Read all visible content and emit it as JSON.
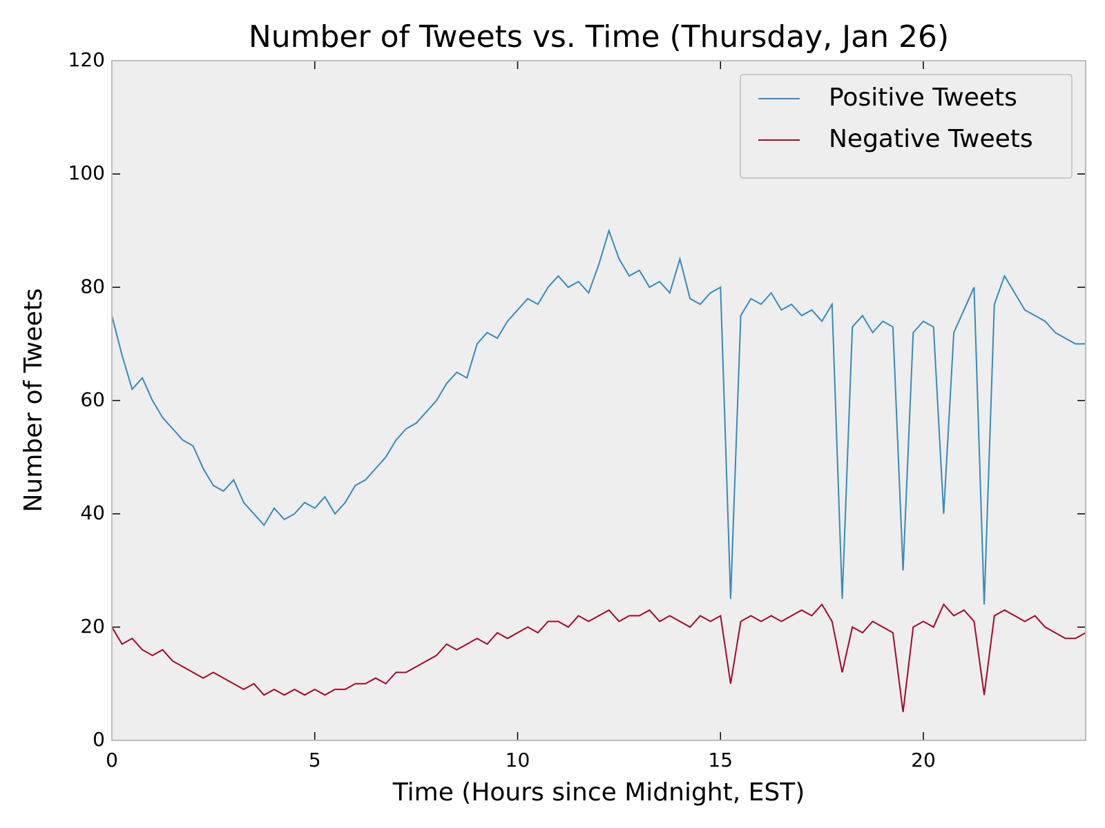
{
  "chart_data": {
    "type": "line",
    "title": "Number of Tweets vs. Time (Thursday, Jan 26)",
    "xlabel": "Time (Hours since Midnight, EST)",
    "ylabel": "Number of Tweets",
    "x": [
      0,
      0.25,
      0.5,
      0.75,
      1,
      1.25,
      1.5,
      1.75,
      2,
      2.25,
      2.5,
      2.75,
      3,
      3.25,
      3.5,
      3.75,
      4,
      4.25,
      4.5,
      4.75,
      5,
      5.25,
      5.5,
      5.75,
      6,
      6.25,
      6.5,
      6.75,
      7,
      7.25,
      7.5,
      7.75,
      8,
      8.25,
      8.5,
      8.75,
      9,
      9.25,
      9.5,
      9.75,
      10,
      10.25,
      10.5,
      10.75,
      11,
      11.25,
      11.5,
      11.75,
      12,
      12.25,
      12.5,
      12.75,
      13,
      13.25,
      13.5,
      13.75,
      14,
      14.25,
      14.5,
      14.75,
      15,
      15.25,
      15.5,
      15.75,
      16,
      16.25,
      16.5,
      16.75,
      17,
      17.25,
      17.5,
      17.75,
      18,
      18.25,
      18.5,
      18.75,
      19,
      19.25,
      19.5,
      19.75,
      20,
      20.25,
      20.5,
      20.75,
      21,
      21.25,
      21.5,
      21.75,
      22,
      22.25,
      22.5,
      22.75,
      23,
      23.25,
      23.5,
      23.75,
      24
    ],
    "series": [
      {
        "name": "Positive Tweets",
        "color": "#348abd",
        "values": [
          75,
          68,
          62,
          64,
          60,
          57,
          55,
          53,
          52,
          48,
          45,
          44,
          46,
          42,
          40,
          38,
          41,
          39,
          40,
          42,
          41,
          43,
          40,
          42,
          45,
          46,
          48,
          50,
          53,
          55,
          56,
          58,
          60,
          63,
          65,
          64,
          70,
          72,
          71,
          74,
          76,
          78,
          77,
          80,
          82,
          80,
          81,
          79,
          84,
          90,
          85,
          82,
          83,
          80,
          81,
          79,
          85,
          78,
          77,
          79,
          80,
          25,
          75,
          78,
          77,
          79,
          76,
          77,
          75,
          76,
          74,
          77,
          25,
          73,
          75,
          72,
          74,
          73,
          30,
          72,
          74,
          73,
          40,
          72,
          76,
          80,
          24,
          77,
          82,
          79,
          76,
          75,
          74,
          72,
          71,
          70,
          70
        ]
      },
      {
        "name": "Negative Tweets",
        "color": "#a60628",
        "values": [
          20,
          17,
          18,
          16,
          15,
          16,
          14,
          13,
          12,
          11,
          12,
          11,
          10,
          9,
          10,
          8,
          9,
          8,
          9,
          8,
          9,
          8,
          9,
          9,
          10,
          10,
          11,
          10,
          12,
          12,
          13,
          14,
          15,
          17,
          16,
          17,
          18,
          17,
          19,
          18,
          19,
          20,
          19,
          21,
          21,
          20,
          22,
          21,
          22,
          23,
          21,
          22,
          22,
          23,
          21,
          22,
          21,
          20,
          22,
          21,
          22,
          10,
          21,
          22,
          21,
          22,
          21,
          22,
          23,
          22,
          24,
          21,
          12,
          20,
          19,
          21,
          20,
          19,
          5,
          20,
          21,
          20,
          24,
          22,
          23,
          21,
          8,
          22,
          23,
          22,
          21,
          22,
          20,
          19,
          18,
          18,
          19
        ]
      }
    ],
    "xlim": [
      0,
      24
    ],
    "xticks": [
      0,
      5,
      10,
      15,
      20
    ],
    "ylim": [
      0,
      120
    ],
    "yticks": [
      0,
      20,
      40,
      60,
      80,
      100,
      120
    ],
    "legend": "upper right",
    "background": "#eeeeee"
  }
}
